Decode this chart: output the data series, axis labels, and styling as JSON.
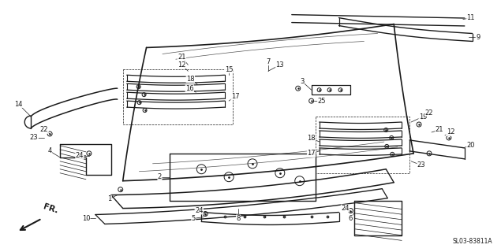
{
  "bg_color": "#ffffff",
  "line_color": "#1a1a1a",
  "fig_width": 6.35,
  "fig_height": 3.2,
  "dpi": 100,
  "diagram_code": "SL03-83811A"
}
